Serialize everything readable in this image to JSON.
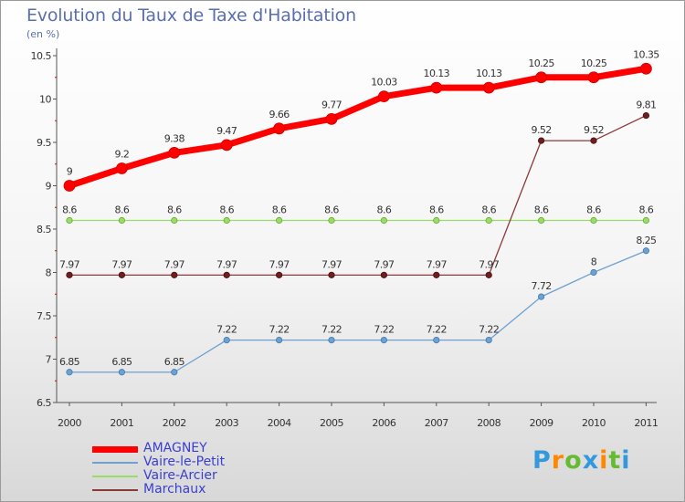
{
  "chart_data": {
    "type": "line",
    "title": "Evolution du Taux de Taxe d'Habitation",
    "subtitle": "(en %)",
    "categories": [
      "2000",
      "2001",
      "2002",
      "2003",
      "2004",
      "2005",
      "2006",
      "2007",
      "2008",
      "2009",
      "2010",
      "2011"
    ],
    "ylim": [
      6.5,
      10.5
    ],
    "yticks": [
      "6.5",
      "7",
      "7.5",
      "8",
      "8.5",
      "9",
      "9.5",
      "10",
      "10.5"
    ],
    "grid": false,
    "legend_position": "bottom-left",
    "series": [
      {
        "name": "AMAGNEY",
        "color": "#ff0000",
        "values": [
          9,
          9.2,
          9.38,
          9.47,
          9.66,
          9.77,
          10.03,
          10.13,
          10.13,
          10.25,
          10.25,
          10.35
        ],
        "labels": [
          "9",
          "9.2",
          "9.38",
          "9.47",
          "9.66",
          "9.77",
          "10.03",
          "10.13",
          "10.13",
          "10.25",
          "10.25",
          "10.35"
        ]
      },
      {
        "name": "Vaire-le-Petit",
        "color": "#6fa0d0",
        "values": [
          6.85,
          6.85,
          6.85,
          7.22,
          7.22,
          7.22,
          7.22,
          7.22,
          7.22,
          7.72,
          8,
          8.25
        ],
        "labels": [
          "6.85",
          "6.85",
          "6.85",
          "7.22",
          "7.22",
          "7.22",
          "7.22",
          "7.22",
          "7.22",
          "7.72",
          "8",
          "8.25"
        ]
      },
      {
        "name": "Vaire-Arcier",
        "color": "#99dd66",
        "values": [
          8.6,
          8.6,
          8.6,
          8.6,
          8.6,
          8.6,
          8.6,
          8.6,
          8.6,
          8.6,
          8.6,
          8.6
        ],
        "labels": [
          "8.6",
          "8.6",
          "8.6",
          "8.6",
          "8.6",
          "8.6",
          "8.6",
          "8.6",
          "8.6",
          "8.6",
          "8.6",
          "8.6"
        ]
      },
      {
        "name": "Marchaux",
        "color": "#8b3a3a",
        "values": [
          7.97,
          7.97,
          7.97,
          7.97,
          7.97,
          7.97,
          7.97,
          7.97,
          7.97,
          9.52,
          9.52,
          9.81
        ],
        "labels": [
          "7.97",
          "7.97",
          "7.97",
          "7.97",
          "7.97",
          "7.97",
          "7.97",
          "7.97",
          "7.97",
          "9.52",
          "9.52",
          "9.81"
        ]
      }
    ]
  },
  "logo": {
    "letters": [
      "P",
      "r",
      "o",
      "x",
      "i",
      "t",
      "i"
    ],
    "colors": [
      "#3399dd",
      "#ff8800",
      "#66bb33",
      "#3399dd",
      "#ff8800",
      "#66bb33",
      "#3399dd"
    ]
  }
}
